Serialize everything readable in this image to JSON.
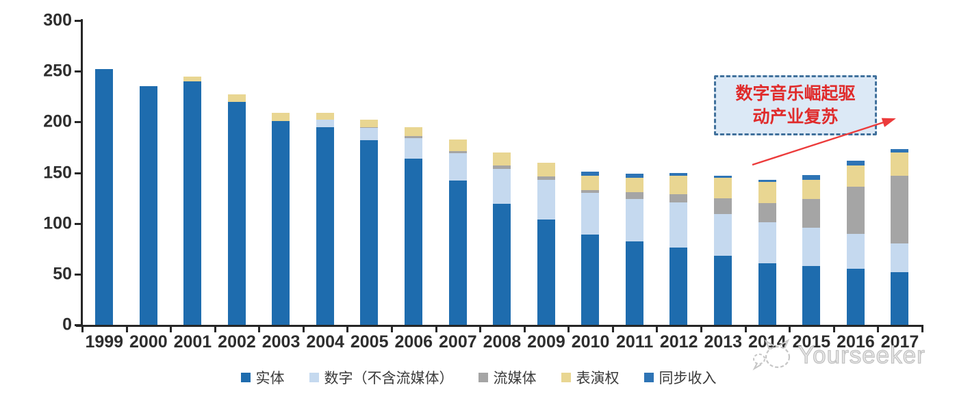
{
  "chart_data": {
    "type": "bar",
    "stacked": true,
    "title": "",
    "categories": [
      "1999",
      "2000",
      "2001",
      "2002",
      "2003",
      "2004",
      "2005",
      "2006",
      "2007",
      "2008",
      "2009",
      "2010",
      "2011",
      "2012",
      "2013",
      "2014",
      "2015",
      "2016",
      "2017"
    ],
    "series": [
      {
        "key": "physical",
        "name": "实体",
        "color": "#1E6CAE",
        "values": [
          252,
          235,
          240,
          220,
          201,
          195,
          182,
          164,
          142,
          119,
          104,
          89,
          82,
          76,
          68,
          61,
          58,
          55,
          52
        ]
      },
      {
        "key": "digital-ex-streaming",
        "name": "数字（不含流媒体）",
        "color": "#C5D9EF",
        "values": [
          0,
          0,
          0,
          0,
          0,
          7,
          12,
          20,
          27,
          35,
          39,
          41,
          42,
          45,
          41,
          40,
          38,
          35,
          28
        ]
      },
      {
        "key": "streaming",
        "name": "流媒体",
        "color": "#A5A5A5",
        "values": [
          0,
          0,
          0,
          0,
          0,
          0,
          1,
          2,
          2,
          3,
          3,
          3,
          7,
          8,
          16,
          19,
          28,
          46,
          67
        ]
      },
      {
        "key": "performance-rights",
        "name": "表演权",
        "color": "#E9D692",
        "values": [
          0,
          0,
          5,
          7,
          8,
          7,
          7,
          9,
          12,
          13,
          14,
          14,
          14,
          18,
          20,
          21,
          19,
          21,
          23
        ]
      },
      {
        "key": "sync-revenue",
        "name": "同步收入",
        "color": "#2E74B5",
        "values": [
          0,
          0,
          0,
          0,
          0,
          0,
          0,
          0,
          0,
          0,
          0,
          4,
          4,
          3,
          2,
          2,
          5,
          5,
          3
        ]
      }
    ],
    "ylim": [
      0,
      300
    ],
    "yticks": [
      0,
      50,
      100,
      150,
      200,
      250,
      300
    ],
    "grid": false,
    "legend_position": "bottom",
    "axis_color": "#262626",
    "label_color": "#2e2e2e"
  },
  "annotation": {
    "line1": "数字音乐崛起驱",
    "line2": "动产业复苏",
    "text_color": "#E02B2B",
    "box_bg": "#DCE9F6",
    "border_color": "#41719C",
    "arrow_color": "#EC3B3B"
  },
  "watermark": {
    "text": "Yourseeker",
    "logo": "cat-chat-logo",
    "color": "#C4C4C4"
  }
}
